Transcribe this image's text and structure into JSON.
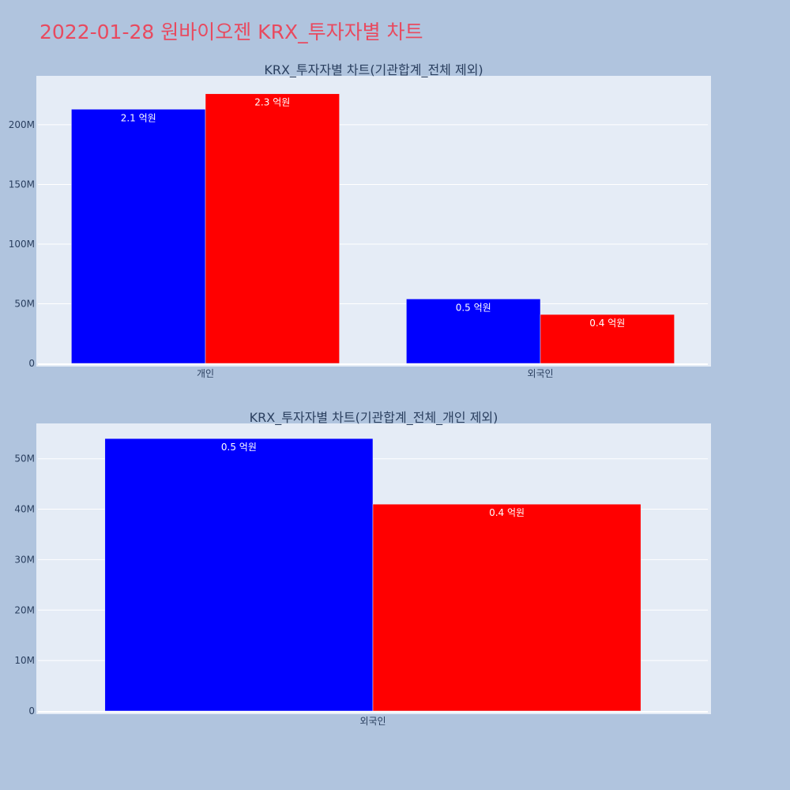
{
  "title": "2022-01-28 원바이오젠 KRX_투자자별 차트",
  "colors": {
    "page_background": "#b0c4de",
    "plot_background": "#e5ecf6",
    "gridline": "#ffffff",
    "title": "#e84a5f",
    "axis_text": "#2a3f5f",
    "bar_label": "#ffffff"
  },
  "chart_data": [
    {
      "type": "bar",
      "title": "KRX_투자자별 차트(기관합계_전체 제외)",
      "categories": [
        "개인",
        "외국인"
      ],
      "series": [
        {
          "color": "#0000ff",
          "values": [
            213000000,
            54000000
          ],
          "labels": [
            "2.1 억원",
            "0.5 억원"
          ]
        },
        {
          "color": "#ff0000",
          "values": [
            226000000,
            41000000
          ],
          "labels": [
            "2.3 억원",
            "0.4 억원"
          ]
        }
      ],
      "ylim": [
        0,
        241000000
      ],
      "yticks": [
        0,
        50000000,
        100000000,
        150000000,
        200000000
      ],
      "ytick_labels": [
        "0",
        "50M",
        "100M",
        "150M",
        "200M"
      ],
      "grid": true
    },
    {
      "type": "bar",
      "title": "KRX_투자자별 차트(기관합계_전체_개인 제외)",
      "categories": [
        "외국인"
      ],
      "series": [
        {
          "color": "#0000ff",
          "values": [
            54000000
          ],
          "labels": [
            "0.5 억원"
          ]
        },
        {
          "color": "#ff0000",
          "values": [
            41000000
          ],
          "labels": [
            "0.4 억원"
          ]
        }
      ],
      "ylim": [
        0,
        57000000
      ],
      "yticks": [
        0,
        10000000,
        20000000,
        30000000,
        40000000,
        50000000
      ],
      "ytick_labels": [
        "0",
        "10M",
        "20M",
        "30M",
        "40M",
        "50M"
      ],
      "grid": true
    }
  ]
}
